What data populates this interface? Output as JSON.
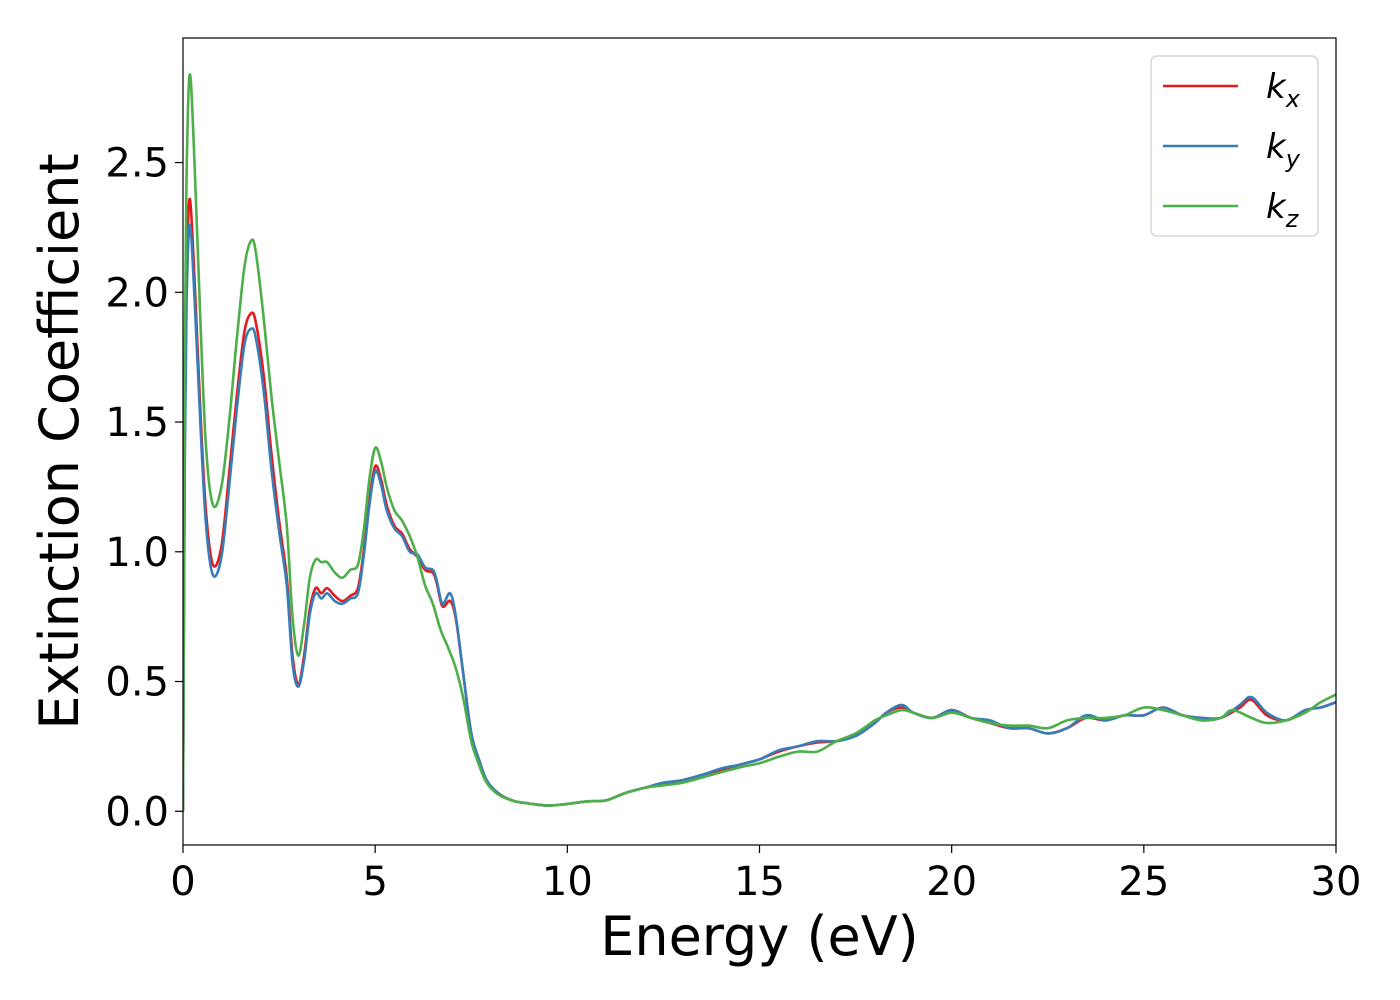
{
  "chart_data": {
    "type": "line",
    "title": "",
    "xlabel": "Energy (eV)",
    "ylabel": "Extinction Coefficient",
    "xlim": [
      0,
      30
    ],
    "ylim": [
      -0.13,
      2.98
    ],
    "xticks": [
      "0",
      "5",
      "10",
      "15",
      "20",
      "25",
      "30"
    ],
    "yticks": [
      "0.0",
      "0.5",
      "1.0",
      "1.5",
      "2.0",
      "2.5"
    ],
    "grid": false,
    "legend_position": "top-right",
    "series": [
      {
        "name": "k_x",
        "legend_main": "k",
        "legend_sub": "x",
        "color": "#e41a1c",
        "points": [
          [
            0,
            0
          ],
          [
            0.05,
            1.5
          ],
          [
            0.1,
            2.1
          ],
          [
            0.18,
            2.36
          ],
          [
            0.3,
            2.05
          ],
          [
            0.45,
            1.55
          ],
          [
            0.6,
            1.15
          ],
          [
            0.78,
            0.95
          ],
          [
            1.0,
            1.02
          ],
          [
            1.2,
            1.3
          ],
          [
            1.4,
            1.6
          ],
          [
            1.6,
            1.85
          ],
          [
            1.78,
            1.92
          ],
          [
            1.9,
            1.88
          ],
          [
            2.1,
            1.68
          ],
          [
            2.3,
            1.38
          ],
          [
            2.5,
            1.12
          ],
          [
            2.7,
            0.9
          ],
          [
            2.85,
            0.6
          ],
          [
            3.0,
            0.49
          ],
          [
            3.15,
            0.6
          ],
          [
            3.3,
            0.78
          ],
          [
            3.45,
            0.86
          ],
          [
            3.6,
            0.84
          ],
          [
            3.75,
            0.86
          ],
          [
            3.95,
            0.83
          ],
          [
            4.15,
            0.81
          ],
          [
            4.35,
            0.83
          ],
          [
            4.55,
            0.86
          ],
          [
            4.7,
            1.0
          ],
          [
            4.85,
            1.2
          ],
          [
            5.0,
            1.33
          ],
          [
            5.15,
            1.28
          ],
          [
            5.3,
            1.18
          ],
          [
            5.5,
            1.1
          ],
          [
            5.7,
            1.07
          ],
          [
            5.9,
            1.01
          ],
          [
            6.1,
            0.98
          ],
          [
            6.3,
            0.93
          ],
          [
            6.5,
            0.92
          ],
          [
            6.6,
            0.88
          ],
          [
            6.75,
            0.79
          ],
          [
            6.95,
            0.81
          ],
          [
            7.1,
            0.74
          ],
          [
            7.3,
            0.52
          ],
          [
            7.5,
            0.3
          ],
          [
            7.7,
            0.2
          ],
          [
            7.9,
            0.12
          ],
          [
            8.2,
            0.07
          ],
          [
            8.6,
            0.04
          ],
          [
            9.0,
            0.03
          ],
          [
            9.5,
            0.022
          ],
          [
            10.0,
            0.028
          ],
          [
            10.5,
            0.038
          ],
          [
            11.0,
            0.042
          ],
          [
            11.5,
            0.07
          ],
          [
            12.0,
            0.09
          ],
          [
            12.5,
            0.105
          ],
          [
            13.0,
            0.12
          ],
          [
            13.5,
            0.14
          ],
          [
            14.0,
            0.16
          ],
          [
            14.5,
            0.18
          ],
          [
            15.0,
            0.2
          ],
          [
            15.5,
            0.23
          ],
          [
            16.0,
            0.25
          ],
          [
            16.5,
            0.265
          ],
          [
            17.0,
            0.27
          ],
          [
            17.5,
            0.29
          ],
          [
            18.0,
            0.34
          ],
          [
            18.3,
            0.38
          ],
          [
            18.7,
            0.4
          ],
          [
            19.0,
            0.38
          ],
          [
            19.5,
            0.36
          ],
          [
            20.0,
            0.39
          ],
          [
            20.5,
            0.36
          ],
          [
            21.0,
            0.34
          ],
          [
            21.5,
            0.32
          ],
          [
            22.0,
            0.32
          ],
          [
            22.5,
            0.3
          ],
          [
            23.0,
            0.32
          ],
          [
            23.5,
            0.36
          ],
          [
            24.0,
            0.35
          ],
          [
            24.5,
            0.37
          ],
          [
            25.0,
            0.37
          ],
          [
            25.5,
            0.4
          ],
          [
            26.0,
            0.37
          ],
          [
            26.5,
            0.36
          ],
          [
            27.0,
            0.36
          ],
          [
            27.5,
            0.4
          ],
          [
            27.8,
            0.43
          ],
          [
            28.2,
            0.37
          ],
          [
            28.7,
            0.35
          ],
          [
            29.2,
            0.39
          ],
          [
            29.6,
            0.4
          ],
          [
            30.0,
            0.42
          ]
        ]
      },
      {
        "name": "k_y",
        "legend_main": "k",
        "legend_sub": "y",
        "color": "#377eb8",
        "points": [
          [
            0,
            0
          ],
          [
            0.05,
            1.4
          ],
          [
            0.1,
            2.0
          ],
          [
            0.18,
            2.26
          ],
          [
            0.3,
            1.98
          ],
          [
            0.45,
            1.5
          ],
          [
            0.6,
            1.1
          ],
          [
            0.78,
            0.91
          ],
          [
            1.0,
            0.98
          ],
          [
            1.2,
            1.25
          ],
          [
            1.4,
            1.55
          ],
          [
            1.6,
            1.8
          ],
          [
            1.78,
            1.86
          ],
          [
            1.9,
            1.82
          ],
          [
            2.1,
            1.62
          ],
          [
            2.3,
            1.32
          ],
          [
            2.5,
            1.08
          ],
          [
            2.7,
            0.87
          ],
          [
            2.85,
            0.57
          ],
          [
            3.0,
            0.48
          ],
          [
            3.15,
            0.58
          ],
          [
            3.3,
            0.76
          ],
          [
            3.45,
            0.84
          ],
          [
            3.6,
            0.82
          ],
          [
            3.75,
            0.84
          ],
          [
            3.95,
            0.81
          ],
          [
            4.15,
            0.8
          ],
          [
            4.35,
            0.82
          ],
          [
            4.55,
            0.84
          ],
          [
            4.7,
            0.98
          ],
          [
            4.85,
            1.18
          ],
          [
            5.0,
            1.31
          ],
          [
            5.15,
            1.26
          ],
          [
            5.3,
            1.16
          ],
          [
            5.5,
            1.09
          ],
          [
            5.7,
            1.06
          ],
          [
            5.9,
            1.0
          ],
          [
            6.1,
            0.99
          ],
          [
            6.3,
            0.94
          ],
          [
            6.5,
            0.93
          ],
          [
            6.6,
            0.89
          ],
          [
            6.75,
            0.8
          ],
          [
            6.95,
            0.84
          ],
          [
            7.1,
            0.75
          ],
          [
            7.3,
            0.52
          ],
          [
            7.5,
            0.3
          ],
          [
            7.7,
            0.2
          ],
          [
            7.9,
            0.12
          ],
          [
            8.2,
            0.07
          ],
          [
            8.6,
            0.04
          ],
          [
            9.0,
            0.03
          ],
          [
            9.5,
            0.022
          ],
          [
            10.0,
            0.028
          ],
          [
            10.5,
            0.038
          ],
          [
            11.0,
            0.042
          ],
          [
            11.5,
            0.07
          ],
          [
            12.0,
            0.09
          ],
          [
            12.5,
            0.11
          ],
          [
            13.0,
            0.12
          ],
          [
            13.5,
            0.14
          ],
          [
            14.0,
            0.165
          ],
          [
            14.5,
            0.18
          ],
          [
            15.0,
            0.2
          ],
          [
            15.5,
            0.235
          ],
          [
            16.0,
            0.25
          ],
          [
            16.5,
            0.27
          ],
          [
            17.0,
            0.27
          ],
          [
            17.5,
            0.29
          ],
          [
            18.0,
            0.34
          ],
          [
            18.3,
            0.38
          ],
          [
            18.7,
            0.41
          ],
          [
            19.0,
            0.38
          ],
          [
            19.5,
            0.36
          ],
          [
            20.0,
            0.39
          ],
          [
            20.5,
            0.36
          ],
          [
            21.0,
            0.35
          ],
          [
            21.5,
            0.32
          ],
          [
            22.0,
            0.32
          ],
          [
            22.5,
            0.3
          ],
          [
            23.0,
            0.32
          ],
          [
            23.5,
            0.37
          ],
          [
            24.0,
            0.35
          ],
          [
            24.5,
            0.37
          ],
          [
            25.0,
            0.37
          ],
          [
            25.5,
            0.4
          ],
          [
            26.0,
            0.37
          ],
          [
            26.5,
            0.36
          ],
          [
            27.0,
            0.36
          ],
          [
            27.5,
            0.41
          ],
          [
            27.8,
            0.44
          ],
          [
            28.2,
            0.38
          ],
          [
            28.7,
            0.35
          ],
          [
            29.2,
            0.39
          ],
          [
            29.6,
            0.4
          ],
          [
            30.0,
            0.42
          ]
        ]
      },
      {
        "name": "k_z",
        "legend_main": "k",
        "legend_sub": "z",
        "color": "#4daf4a",
        "points": [
          [
            0,
            0
          ],
          [
            0.05,
            1.8
          ],
          [
            0.1,
            2.5
          ],
          [
            0.18,
            2.84
          ],
          [
            0.3,
            2.5
          ],
          [
            0.45,
            1.9
          ],
          [
            0.6,
            1.4
          ],
          [
            0.78,
            1.18
          ],
          [
            1.0,
            1.25
          ],
          [
            1.2,
            1.5
          ],
          [
            1.4,
            1.82
          ],
          [
            1.6,
            2.1
          ],
          [
            1.78,
            2.2
          ],
          [
            1.9,
            2.15
          ],
          [
            2.1,
            1.9
          ],
          [
            2.3,
            1.6
          ],
          [
            2.5,
            1.35
          ],
          [
            2.7,
            1.1
          ],
          [
            2.85,
            0.75
          ],
          [
            3.0,
            0.6
          ],
          [
            3.15,
            0.72
          ],
          [
            3.3,
            0.9
          ],
          [
            3.45,
            0.97
          ],
          [
            3.6,
            0.96
          ],
          [
            3.75,
            0.96
          ],
          [
            3.95,
            0.92
          ],
          [
            4.15,
            0.9
          ],
          [
            4.35,
            0.93
          ],
          [
            4.55,
            0.95
          ],
          [
            4.7,
            1.08
          ],
          [
            4.85,
            1.28
          ],
          [
            5.0,
            1.4
          ],
          [
            5.15,
            1.35
          ],
          [
            5.3,
            1.25
          ],
          [
            5.5,
            1.16
          ],
          [
            5.7,
            1.12
          ],
          [
            5.9,
            1.06
          ],
          [
            6.1,
            0.98
          ],
          [
            6.3,
            0.87
          ],
          [
            6.5,
            0.8
          ],
          [
            6.7,
            0.7
          ],
          [
            6.9,
            0.63
          ],
          [
            7.1,
            0.55
          ],
          [
            7.3,
            0.43
          ],
          [
            7.5,
            0.27
          ],
          [
            7.7,
            0.18
          ],
          [
            7.9,
            0.11
          ],
          [
            8.2,
            0.065
          ],
          [
            8.6,
            0.04
          ],
          [
            9.0,
            0.03
          ],
          [
            9.5,
            0.022
          ],
          [
            10.0,
            0.028
          ],
          [
            10.5,
            0.038
          ],
          [
            11.0,
            0.042
          ],
          [
            11.5,
            0.07
          ],
          [
            12.0,
            0.09
          ],
          [
            12.5,
            0.1
          ],
          [
            13.0,
            0.11
          ],
          [
            13.5,
            0.13
          ],
          [
            14.0,
            0.15
          ],
          [
            14.5,
            0.17
          ],
          [
            15.0,
            0.185
          ],
          [
            15.5,
            0.21
          ],
          [
            16.0,
            0.23
          ],
          [
            16.5,
            0.23
          ],
          [
            17.0,
            0.27
          ],
          [
            17.5,
            0.3
          ],
          [
            18.0,
            0.35
          ],
          [
            18.3,
            0.37
          ],
          [
            18.7,
            0.39
          ],
          [
            19.0,
            0.38
          ],
          [
            19.5,
            0.36
          ],
          [
            20.0,
            0.38
          ],
          [
            20.5,
            0.36
          ],
          [
            21.0,
            0.34
          ],
          [
            21.5,
            0.33
          ],
          [
            22.0,
            0.33
          ],
          [
            22.5,
            0.32
          ],
          [
            23.0,
            0.35
          ],
          [
            23.5,
            0.36
          ],
          [
            24.0,
            0.36
          ],
          [
            24.5,
            0.37
          ],
          [
            25.0,
            0.4
          ],
          [
            25.5,
            0.39
          ],
          [
            26.0,
            0.37
          ],
          [
            26.5,
            0.35
          ],
          [
            27.0,
            0.36
          ],
          [
            27.3,
            0.39
          ],
          [
            27.8,
            0.36
          ],
          [
            28.2,
            0.34
          ],
          [
            28.7,
            0.35
          ],
          [
            29.2,
            0.38
          ],
          [
            29.6,
            0.42
          ],
          [
            30.0,
            0.45
          ]
        ]
      }
    ]
  }
}
